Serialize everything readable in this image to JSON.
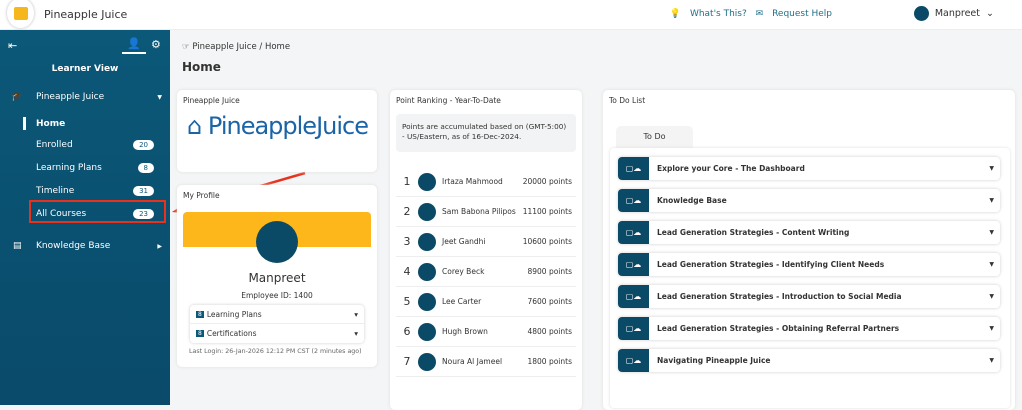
{
  "header": {
    "title": "Pineapple Juice",
    "whats_this": "What's This?",
    "request_help": "Request Help",
    "user": "Manpreet"
  },
  "sidebar": {
    "view": "Learner View",
    "section": "Pineapple Juice",
    "items": [
      {
        "label": "Home"
      },
      {
        "label": "Enrolled",
        "count": "20"
      },
      {
        "label": "Learning Plans",
        "count": "8"
      },
      {
        "label": "Timeline",
        "count": "31"
      },
      {
        "label": "All Courses",
        "count": "23"
      }
    ],
    "knowledge": "Knowledge Base"
  },
  "main": {
    "breadcrumb": "Pineapple Juice / Home",
    "title": "Home"
  },
  "logo_card": {
    "title": "Pineapple Juice",
    "logo_text": "PineappleJuice"
  },
  "profile": {
    "title": "My Profile",
    "name": "Manpreet",
    "employee": "Employee ID: 1400",
    "rows": [
      {
        "count": "8",
        "label": "Learning Plans"
      },
      {
        "count": "8",
        "label": "Certifications"
      }
    ],
    "last_login": "Last Login: 26-Jan-2026 12:12 PM CST (2 minutes ago)"
  },
  "ranking": {
    "title": "Point Ranking - Year-To-Date",
    "note": "Points are accumulated based on (GMT-5:00) - US/Eastern, as of 16-Dec-2024.",
    "rows": [
      {
        "rank": "1",
        "name": "Irtaza Mahmood",
        "points": "20000 points"
      },
      {
        "rank": "2",
        "name": "Sam Babona Pilipos",
        "points": "11100 points"
      },
      {
        "rank": "3",
        "name": "Jeet Gandhi",
        "points": "10600 points"
      },
      {
        "rank": "4",
        "name": "Corey Beck",
        "points": "8900 points"
      },
      {
        "rank": "5",
        "name": "Lee Carter",
        "points": "7600 points"
      },
      {
        "rank": "6",
        "name": "Hugh Brown",
        "points": "4800 points"
      },
      {
        "rank": "7",
        "name": "Noura Al Jameel",
        "points": "1800 points"
      }
    ]
  },
  "todo": {
    "title": "To Do List",
    "tab": "To Do",
    "items": [
      "Explore your Core - The Dashboard",
      "Knowledge Base",
      "Lead Generation Strategies - Content Writing",
      "Lead Generation Strategies - Identifying Client Needs",
      "Lead Generation Strategies - Introduction to Social Media",
      "Lead Generation Strategies - Obtaining Referral Partners",
      "Navigating Pineapple Juice"
    ]
  },
  "colors": {
    "sidebar": "#0b5878",
    "accent": "#fdb71a",
    "highlight": "#e8321e"
  }
}
